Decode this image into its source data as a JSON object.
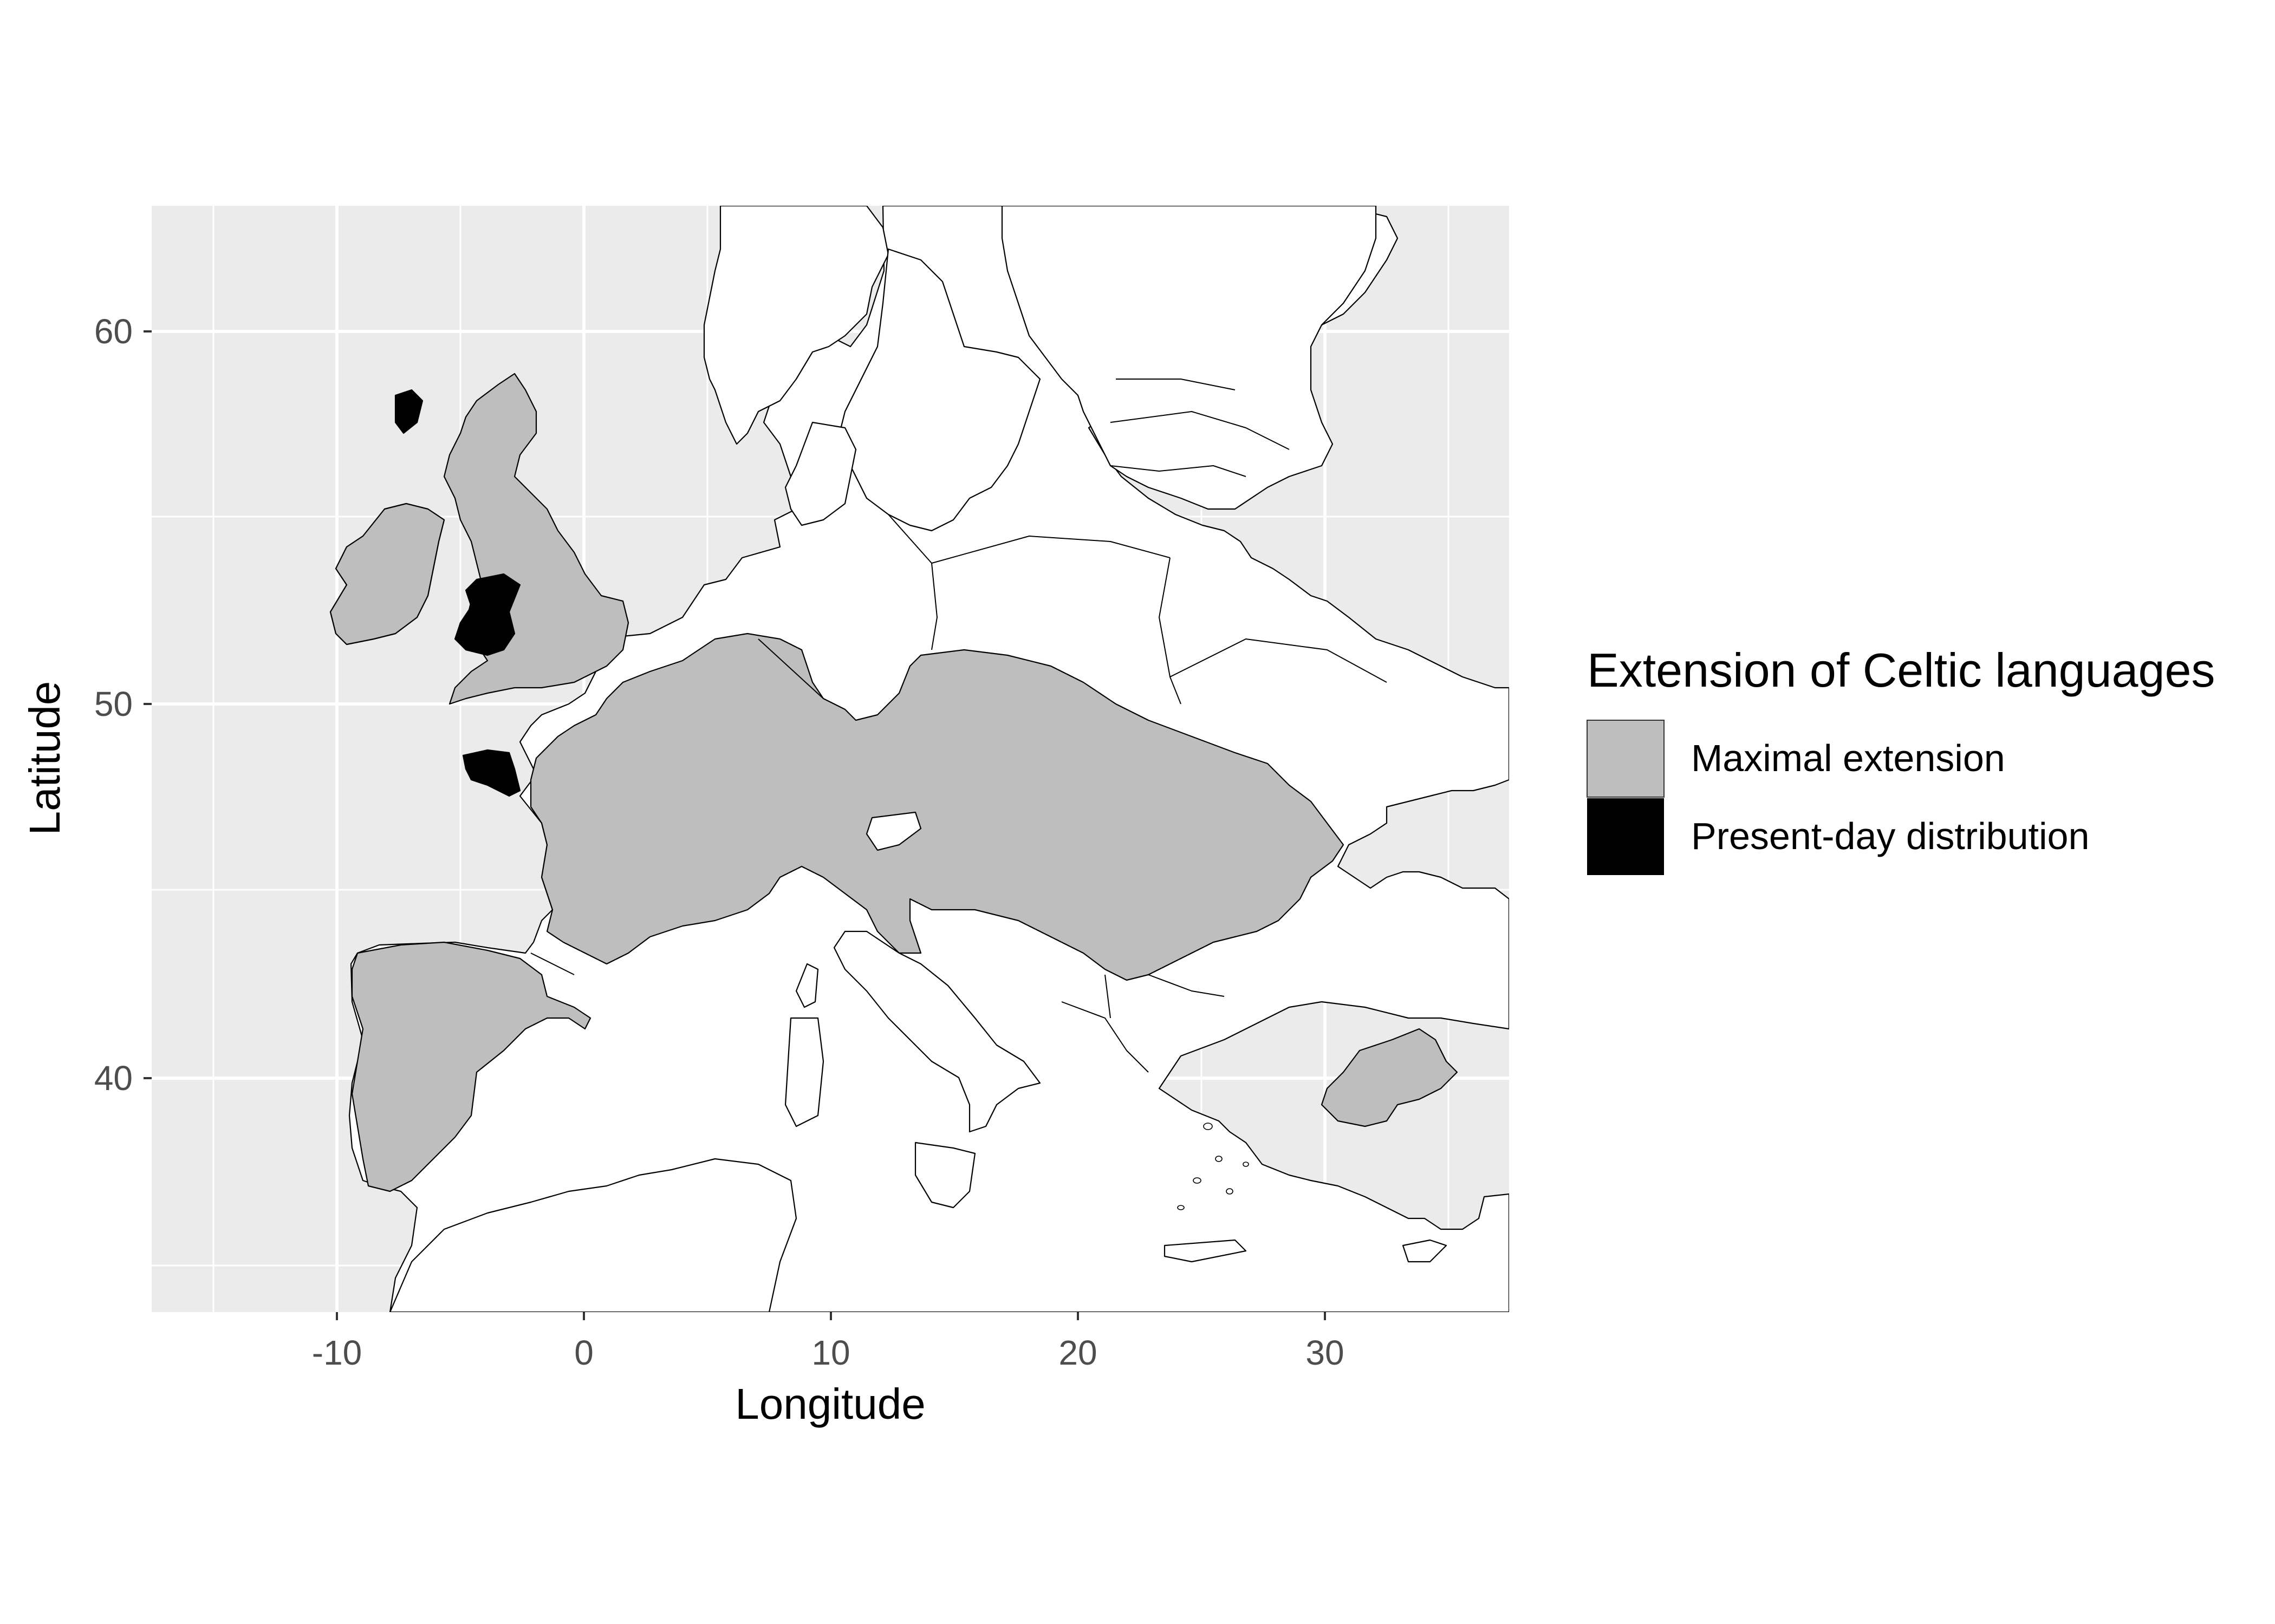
{
  "legend": {
    "title": "Extension of Celtic languages",
    "entries": [
      {
        "label": "Maximal extension",
        "fill": "#bebebe"
      },
      {
        "label": "Present-day distribution",
        "fill": "#000000"
      }
    ]
  },
  "axes": {
    "xlabel": "Longitude",
    "ylabel": "Latitude",
    "xticks": [
      "-10",
      "0",
      "10",
      "20",
      "30"
    ],
    "yticks": [
      "40",
      "50",
      "60"
    ]
  },
  "colors": {
    "panel": "#ebebeb",
    "land": "#ffffff",
    "maximal": "#bebebe",
    "present": "#000000",
    "grid": "#ffffff"
  }
}
